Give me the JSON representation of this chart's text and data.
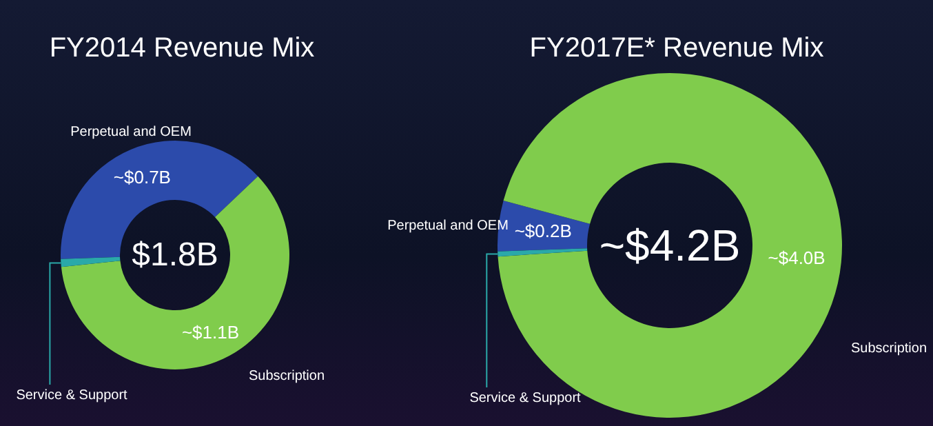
{
  "chart_data": [
    {
      "type": "donut",
      "title": "FY2014 Revenue Mix",
      "categories": [
        "Perpetual and OEM",
        "Subscription",
        "Service & Support"
      ],
      "values": [
        0.7,
        1.1,
        0.02
      ],
      "colors": [
        "#2c4bab",
        "#80cc4c",
        "#2aa9a9"
      ],
      "value_labels": [
        "~$0.7B",
        "~$1.1B",
        null
      ],
      "annotations": [
        "$1.8B"
      ]
    },
    {
      "type": "donut",
      "title": "FY2017E* Revenue Mix",
      "categories": [
        "Perpetual and OEM",
        "Subscription",
        "Service & Support"
      ],
      "values": [
        0.2,
        4.0,
        0.02
      ],
      "colors": [
        "#2c4bab",
        "#80cc4c",
        "#2aa9a9"
      ],
      "value_labels": [
        "~$0.2B",
        "~$4.0B",
        null
      ],
      "annotations": [
        "~$4.2B"
      ]
    }
  ]
}
